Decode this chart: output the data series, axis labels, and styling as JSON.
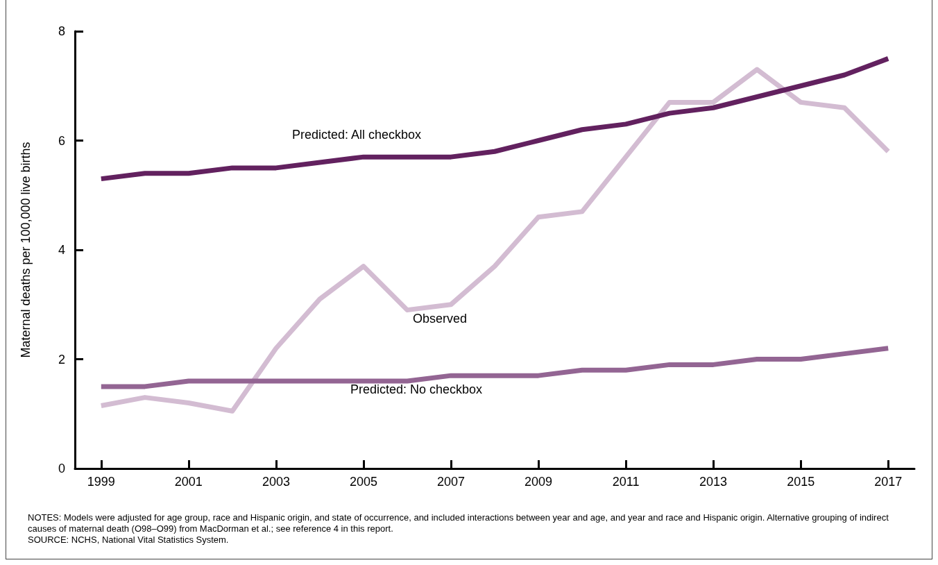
{
  "chart_data": {
    "type": "line",
    "ylabel": "Maternal deaths per 100,000 live births",
    "x": [
      1999,
      2000,
      2001,
      2002,
      2003,
      2004,
      2005,
      2006,
      2007,
      2008,
      2009,
      2010,
      2011,
      2012,
      2013,
      2014,
      2015,
      2016,
      2017
    ],
    "xlim": [
      1998.4,
      2017.6
    ],
    "xticks": [
      1999,
      2001,
      2003,
      2005,
      2007,
      2009,
      2011,
      2013,
      2015,
      2017
    ],
    "ylim": [
      0,
      8
    ],
    "yticks": [
      0,
      2,
      4,
      6,
      8
    ],
    "grid": false,
    "legend": false,
    "marker": "none",
    "line_style": "solid",
    "series": [
      {
        "name": "Predicted: All checkbox",
        "color": "#62215f",
        "values": [
          5.3,
          5.4,
          5.4,
          5.5,
          5.5,
          5.6,
          5.7,
          5.7,
          5.7,
          5.8,
          6.0,
          6.2,
          6.3,
          6.5,
          6.6,
          6.8,
          7.0,
          7.2,
          7.5
        ]
      },
      {
        "name": "Observed",
        "color": "#d3bcd2",
        "values": [
          1.15,
          1.3,
          1.2,
          1.05,
          2.2,
          3.1,
          3.7,
          2.9,
          3.0,
          3.7,
          4.6,
          4.7,
          5.7,
          6.7,
          6.7,
          7.3,
          6.7,
          6.6,
          5.8
        ]
      },
      {
        "name": "Predicted: No checkbox",
        "color": "#936593",
        "values": [
          1.5,
          1.5,
          1.6,
          1.6,
          1.6,
          1.6,
          1.6,
          1.6,
          1.7,
          1.7,
          1.7,
          1.8,
          1.8,
          1.9,
          1.9,
          2.0,
          2.0,
          2.1,
          2.2
        ]
      }
    ],
    "annotations": [
      "NOTES: Models were adjusted for age group, race and Hispanic origin, and state of occurrence, and included interactions between year and age, and year and race and Hispanic origin. Alternative grouping of indirect causes of maternal death (O98–O99) from MacDorman et al.; see reference 4 in this report.",
      "SOURCE: NCHS, National Vital Statistics System."
    ]
  }
}
